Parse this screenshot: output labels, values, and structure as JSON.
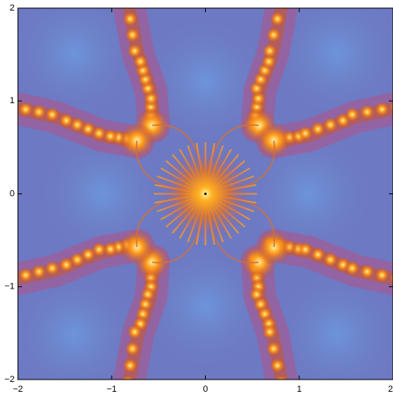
{
  "chart_data": {
    "type": "image",
    "xlim": [
      -2,
      2
    ],
    "ylim": [
      -2,
      2
    ],
    "xticks": [
      {
        "value": -2,
        "label": "−2"
      },
      {
        "value": -1,
        "label": "−1"
      },
      0,
      1,
      2
    ],
    "yticks": [
      {
        "value": -2,
        "label": "−2"
      },
      {
        "value": -1,
        "label": "−1"
      },
      0,
      1,
      2
    ]
  }
}
